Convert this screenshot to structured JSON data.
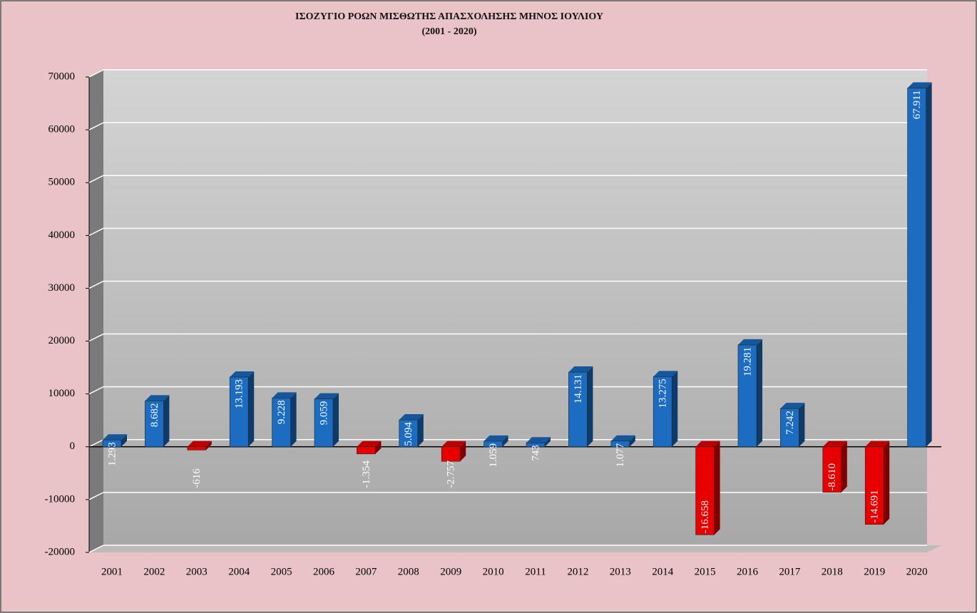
{
  "chart_data": {
    "type": "bar",
    "title": "ΙΣΟΖΥΓΙΟ ΡΟΩΝ ΜΙΣΘΩΤΗΣ ΑΠΑΣΧΟΛΗΣΗΣ ΜΗΝΟΣ  ΙΟΥΛΙΟΥ",
    "subtitle": "(2001 - 2020)",
    "categories": [
      "2001",
      "2002",
      "2003",
      "2004",
      "2005",
      "2006",
      "2007",
      "2008",
      "2009",
      "2010",
      "2011",
      "2012",
      "2013",
      "2014",
      "2015",
      "2016",
      "2017",
      "2018",
      "2019",
      "2020"
    ],
    "values": [
      1293,
      8682,
      -616,
      13193,
      9228,
      9059,
      -1354,
      5094,
      -2757,
      1059,
      743,
      14131,
      1077,
      13275,
      -16658,
      19281,
      7242,
      -8610,
      -14691,
      67911
    ],
    "value_labels": [
      "1.293",
      "8.682",
      "-616",
      "13.193",
      "9.228",
      "9.059",
      "-1.354",
      "5.094",
      "-2.757",
      "1.059",
      "743",
      "14.131",
      "1.077",
      "13.275",
      "-16.658",
      "19.281",
      "7.242",
      "-8.610",
      "-14.691",
      "67.911"
    ],
    "color": "#1c6cc2",
    "negative_color": "#e80000",
    "ylim": [
      -20000,
      70000
    ],
    "yticks": [
      -20000,
      -10000,
      0,
      10000,
      20000,
      30000,
      40000,
      50000,
      60000,
      70000
    ],
    "grid": true
  }
}
